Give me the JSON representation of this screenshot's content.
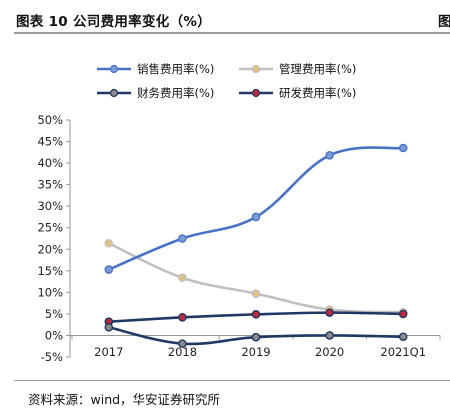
{
  "figure": {
    "title": "图表 10  公司费用率变化（%）",
    "cut_title": "图",
    "source": "资料来源：wind，华安证券研究所"
  },
  "chart_data": {
    "type": "line",
    "title": "",
    "xlabel": "",
    "ylabel": "",
    "categories": [
      "2017",
      "2018",
      "2019",
      "2020",
      "2021Q1"
    ],
    "yticks": [
      "-5%",
      "0%",
      "5%",
      "10%",
      "15%",
      "20%",
      "25%",
      "30%",
      "35%",
      "40%",
      "45%",
      "50%"
    ],
    "ylim": [
      -5,
      50
    ],
    "grid": false,
    "legend_position": "top",
    "series": [
      {
        "name": "销售费用率(%)",
        "values": [
          15.3,
          22.5,
          27.5,
          41.8,
          43.5
        ],
        "line_color": "#4a72c4",
        "marker_fill": "#7b9ad8",
        "smooth": true
      },
      {
        "name": "管理费用率(%)",
        "values": [
          21.4,
          13.4,
          9.7,
          6.0,
          5.4
        ],
        "line_color": "#c0c0c0",
        "marker_fill": "#e3c27a",
        "smooth": true
      },
      {
        "name": "财务费用率(%)",
        "values": [
          1.9,
          -1.9,
          -0.4,
          0.0,
          -0.3
        ],
        "line_color": "#1f3864",
        "marker_fill": "#8a8a8a",
        "smooth": true
      },
      {
        "name": "研发费用率(%)",
        "values": [
          3.2,
          4.2,
          4.9,
          5.3,
          5.0
        ],
        "line_color": "#1f3864",
        "marker_fill": "#c0283c",
        "smooth": true
      }
    ]
  }
}
